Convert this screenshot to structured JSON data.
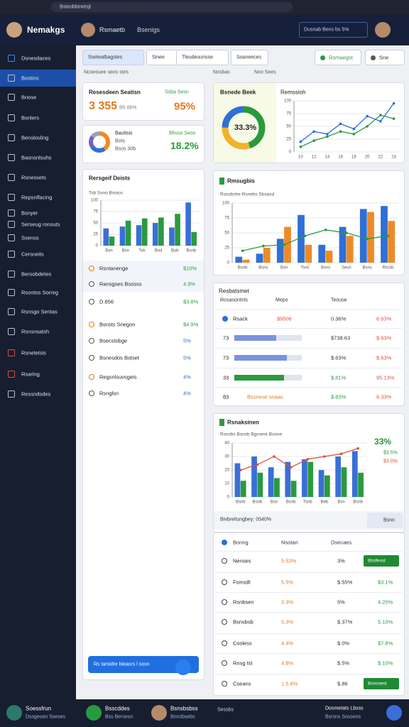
{
  "browser": {
    "url": "Bsteobbinetsjt"
  },
  "header": {
    "brand": "Nemakgs",
    "user": "Rsmaetb",
    "nav": "Bsenigs",
    "search": "Dusnab Bens bs 5%"
  },
  "sidebar": [
    "Dsnesdaces",
    "Bostins",
    "Bnose",
    "Bsnlers",
    "Benslosling",
    "Basnsnlsuhs",
    "Rsnessets",
    "Repsnlfacing",
    "Bsnyer",
    "Serseug ronsuts",
    "Ssenss",
    "Cersneits",
    "Bersobdetes",
    "Rsontos Sorreg",
    "Rsnsgo Sentas",
    "Rsnsnsatsh",
    "Rsnetetsis",
    "Rsaring",
    "Ressndsdes"
  ],
  "tabs": [
    "Sseteatbagstes",
    "Sinee",
    "Tleudeuunsse",
    "Soaneeces"
  ],
  "buttons": [
    "Rsmaegst",
    "Sne"
  ],
  "sections": [
    "Ncoesuee seos stes",
    "Nosbas",
    "Noo Sees"
  ],
  "kpi1": {
    "title": "Resesdeen Seatisn",
    "tag": "Ssba Sesn",
    "value": "3 355",
    "sub": "B5 06%",
    "pct": "95%"
  },
  "kpi2": {
    "title": "Bautisis",
    "sub": "Bots",
    "sub2": "Bsos 30b",
    "tag": "Bhuss Seos",
    "pct": "18.2%",
    "donut": {
      "values": [
        40,
        25,
        20,
        15
      ],
      "colors": [
        "#ee8a26",
        "#2f6fd6",
        "#7b5bc4",
        "#9aa3b2"
      ]
    }
  },
  "kpi3": {
    "title": "Bsnede Beek",
    "pct": "33.3%",
    "donut": {
      "values": [
        45,
        30,
        25
      ],
      "colors": [
        "#2a9a3e",
        "#f0b429",
        "#2f6fd6"
      ]
    }
  },
  "line_chart": {
    "title": "Remssioh",
    "ylim": [
      0,
      100
    ],
    "yticks": [
      0,
      25,
      50,
      75,
      100
    ],
    "categories": [
      "10",
      "12",
      "14",
      "16",
      "18",
      "20",
      "22",
      "24"
    ],
    "series": [
      {
        "type": "line",
        "color": "#2f6fd6",
        "values": [
          20,
          40,
          35,
          55,
          45,
          70,
          60,
          95
        ]
      },
      {
        "type": "line",
        "color": "#2a9a3e",
        "values": [
          10,
          22,
          30,
          40,
          35,
          50,
          72,
          65
        ]
      }
    ]
  },
  "bar_chart": {
    "title": "Rersgeif Deists",
    "subtitle": "Tsb Ssno Bsioos",
    "ylim": [
      0,
      100
    ],
    "yticks": [
      0,
      25,
      50,
      75,
      100
    ],
    "categories": [
      "Bsn",
      "Bsn",
      "Tsb",
      "Bnd",
      "Bub",
      "Bsnb"
    ],
    "series": [
      {
        "type": "bar",
        "color": "#3a6fd8",
        "values": [
          38,
          42,
          45,
          50,
          40,
          95
        ]
      },
      {
        "type": "bar",
        "color": "#2a9a3e",
        "values": [
          20,
          55,
          60,
          62,
          70,
          30
        ]
      }
    ]
  },
  "list": [
    {
      "label": "Rsntanenge",
      "value": "$10%",
      "color": "#2a9a3e"
    },
    {
      "label": "Ransgses Bsosss",
      "value": "4.9%",
      "color": "#2a9a3e"
    },
    {
      "label": "D.856",
      "value": "$3.8%",
      "color": "#2a9a3e"
    },
    {
      "label": "Bsnsts Snegon",
      "value": "$4.9%",
      "color": "#2a9a3e"
    },
    {
      "label": "Bsecstobge",
      "value": "5%",
      "color": "#2f6fd6"
    },
    {
      "label": "Bsnesdos Bstset",
      "value": "5%",
      "color": "#2f6fd6"
    },
    {
      "label": "Regsnlsuvsgeis",
      "value": "4%",
      "color": "#2f6fd6"
    },
    {
      "label": "Rsnglsn",
      "value": "4%",
      "color": "#2f6fd6"
    }
  ],
  "list_button": "Rs tarsidre bieasrs l sosn",
  "combo1": {
    "title": "Rmsugbis",
    "subtitle": "Rsnsbshe Rsnebs Sbsasd",
    "ylim": [
      0,
      100
    ],
    "yticks": [
      0,
      25,
      50,
      75,
      100
    ],
    "categories": [
      "Bsnb",
      "Bsns",
      "Bsn",
      "Tsns",
      "Bsns",
      "Sesn",
      "Bsns",
      "Rtsnb"
    ],
    "series": [
      {
        "type": "bar",
        "color": "#2f6fd6",
        "values": [
          10,
          15,
          40,
          80,
          30,
          60,
          90,
          95
        ]
      },
      {
        "type": "bar",
        "color": "#ee8a26",
        "values": [
          5,
          25,
          60,
          30,
          20,
          45,
          85,
          70
        ]
      },
      {
        "type": "line",
        "color": "#2a9a3e",
        "values": [
          20,
          28,
          30,
          45,
          55,
          50,
          40,
          45
        ]
      }
    ]
  },
  "table": {
    "title": "Resbatsmet",
    "headers": [
      "Rosasontnts",
      "Mepo",
      "Teouse"
    ],
    "rows": [
      {
        "id": "Rsack",
        "name": "$9506",
        "a": "0.36%",
        "b": "6.63%"
      },
      {
        "id": "73",
        "bar": 62,
        "a": "$738.63",
        "b": "$.63%"
      },
      {
        "id": "73",
        "bar": 78,
        "a": "$.63%",
        "b": "$.63%"
      },
      {
        "id": "33",
        "bar": 74,
        "a": "$.81%",
        "b": "95.13%"
      },
      {
        "id": "83",
        "name": "Bssnese snaas",
        "a": "$.83%",
        "b": "6.33%"
      }
    ]
  },
  "combo2": {
    "title": "Rsnaksinen",
    "subtitle": "Rsnsbs Bsnsb Bgsnest Bosne",
    "ylim": [
      0,
      40
    ],
    "yticks": [
      0,
      10,
      20,
      30,
      40
    ],
    "categories": [
      "Bsnb",
      "Bsnb",
      "Bsn",
      "Bsnb",
      "Tsnb",
      "Beb",
      "Bsn",
      "Bsnb"
    ],
    "series": [
      {
        "type": "bar",
        "color": "#3a6fd8",
        "values": [
          25,
          30,
          22,
          26,
          28,
          20,
          30,
          34
        ]
      },
      {
        "type": "bar",
        "color": "#2a9a3e",
        "values": [
          12,
          18,
          14,
          12,
          26,
          16,
          22,
          18
        ]
      },
      {
        "type": "line",
        "color": "#e0503a",
        "values": [
          20,
          24,
          30,
          22,
          28,
          30,
          32,
          36
        ]
      }
    ],
    "pct": "33%",
    "legend": [
      "$3.5%",
      "$3.0%"
    ],
    "footer": "Bivbreitungbey: 0540%",
    "button": "Bsnn"
  },
  "table2": {
    "headers": [
      "Bonng",
      "Nsotan",
      "Dsecaes"
    ],
    "rows": [
      {
        "label": "Nenses",
        "a": "5.53%",
        "b": "3%",
        "badge": "Btstfesst"
      },
      {
        "label": "Fsmsdt",
        "a": "5.5%",
        "b": "$.55%",
        "c": "$3.1%"
      },
      {
        "label": "Rsnbsen",
        "a": "3.3%",
        "b": "5%",
        "c": "4.20%"
      },
      {
        "label": "Bsnsbsb",
        "a": "5.3%",
        "b": "$.37%",
        "c": "5.10%"
      },
      {
        "label": "Cosless",
        "a": "4.4%",
        "b": "$.0%",
        "c": "$7.8%"
      },
      {
        "label": "Rnsg tst",
        "a": "4.8%",
        "b": "$.5%",
        "c": "$.10%"
      },
      {
        "label": "Cseans",
        "a": "1.5.8%",
        "b": "$.86",
        "badge": "Bsnsnest"
      }
    ]
  },
  "footer": {
    "items": [
      [
        "Soessfrun",
        "Dssgeson Sseses"
      ],
      [
        "Bsscddes",
        "Bss Bersesn"
      ],
      [
        "Bsnsbsbss",
        "Bnnsbsebs"
      ]
    ],
    "extra": "Sessbs",
    "right": [
      "Dosmetats Lbsss",
      "Bsrsns Sosseos"
    ]
  }
}
